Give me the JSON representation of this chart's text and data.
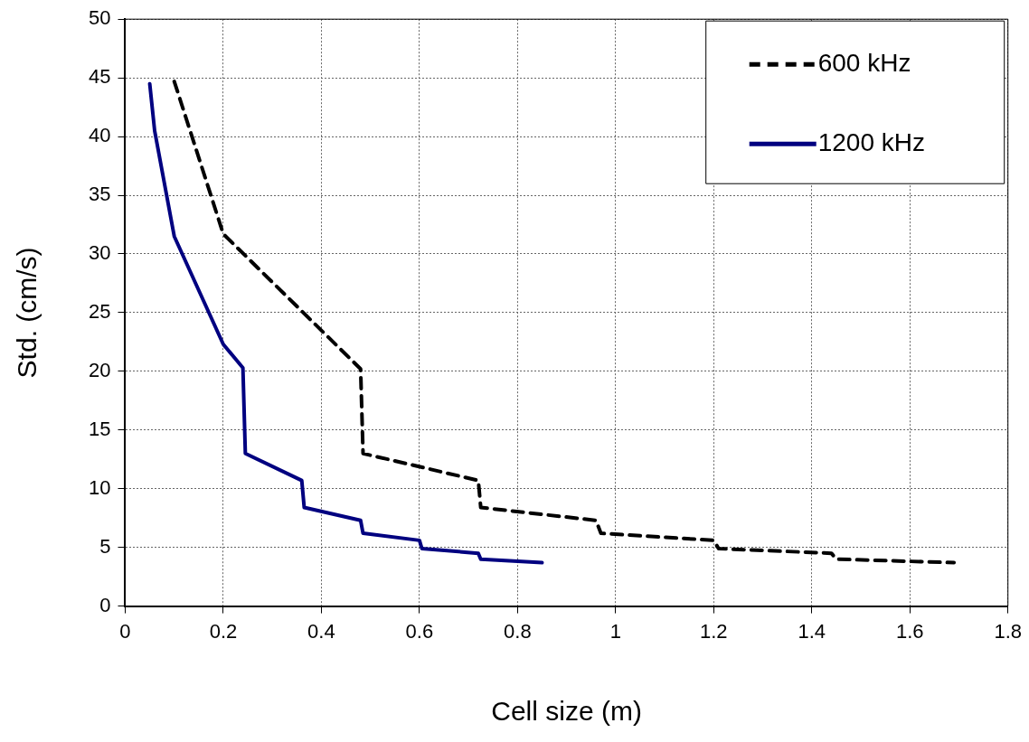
{
  "chart_data": {
    "type": "line",
    "xlabel": "Cell size (m)",
    "ylabel": "Std. (cm/s)",
    "xlim": [
      0,
      1.8
    ],
    "xticks": [
      0,
      0.2,
      0.4,
      0.6,
      0.8,
      1,
      1.2,
      1.4,
      1.6,
      1.8
    ],
    "ylim": [
      0,
      50
    ],
    "yticks": [
      0,
      5,
      10,
      15,
      20,
      25,
      30,
      35,
      40,
      45,
      50
    ],
    "grid": true,
    "legend": "top right",
    "marker": "none",
    "series": [
      {
        "name": "600 kHz",
        "color": "#000000",
        "line_style": "dashed",
        "x": [
          0.1,
          0.2,
          0.48,
          0.485,
          0.72,
          0.725,
          0.96,
          0.97,
          1.2,
          1.21,
          1.44,
          1.45,
          1.69
        ],
        "values": [
          44.7,
          31.7,
          20.2,
          13.0,
          10.7,
          8.4,
          7.3,
          6.2,
          5.6,
          4.9,
          4.5,
          4.0,
          3.7
        ]
      },
      {
        "name": "1200 kHz",
        "color": "#000080",
        "line_style": "solid",
        "x": [
          0.05,
          0.06,
          0.1,
          0.2,
          0.24,
          0.245,
          0.36,
          0.365,
          0.48,
          0.485,
          0.6,
          0.605,
          0.72,
          0.725,
          0.85
        ],
        "values": [
          44.5,
          40.5,
          31.5,
          22.3,
          20.3,
          13.0,
          10.7,
          8.4,
          7.3,
          6.2,
          5.6,
          4.9,
          4.5,
          4.0,
          3.7
        ]
      }
    ]
  }
}
